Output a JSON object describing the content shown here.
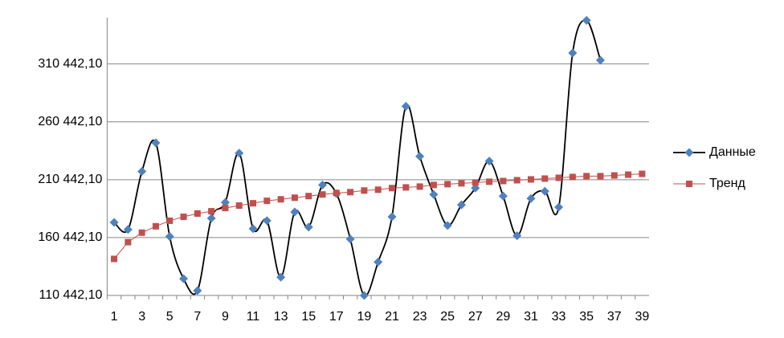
{
  "chart_data": {
    "type": "line",
    "categories": [
      "1",
      null,
      "3",
      null,
      "5",
      null,
      "7",
      null,
      "9",
      null,
      "11",
      null,
      "13",
      null,
      "15",
      null,
      "17",
      null,
      "19",
      null,
      "21",
      null,
      "23",
      null,
      "25",
      null,
      "27",
      null,
      "29",
      null,
      "31",
      null,
      "33",
      null,
      "35",
      null,
      "37",
      null,
      "39"
    ],
    "series": [
      {
        "name": "Данные",
        "color": "#000000",
        "marker_color": "#4f81bd",
        "marker": "diamond",
        "smooth": true,
        "values": [
          173600,
          167400,
          217600,
          242300,
          161300,
          124900,
          114600,
          177100,
          190800,
          233400,
          168100,
          175000,
          126200,
          182600,
          169500,
          205900,
          198400,
          159200,
          110400,
          139300,
          178400,
          273900,
          230600,
          197700,
          170900,
          188700,
          203200,
          226500,
          196300,
          162000,
          194200,
          200400,
          186700,
          319900,
          348100,
          313700,
          null,
          null,
          null
        ]
      },
      {
        "name": "Тренд",
        "color": "#c0504d",
        "marker_color": "#c0504d",
        "marker": "square",
        "smooth": false,
        "values": [
          142000,
          156500,
          164700,
          170200,
          175000,
          178400,
          181200,
          183200,
          186000,
          188100,
          190100,
          192200,
          193500,
          194900,
          196300,
          197700,
          199000,
          199700,
          201100,
          201800,
          203200,
          203800,
          204500,
          205900,
          206600,
          207300,
          208000,
          208700,
          209300,
          210000,
          210700,
          211400,
          212100,
          212800,
          213500,
          213500,
          214100,
          214800,
          215500
        ]
      }
    ],
    "ylim": [
      110442.1,
      350442.1
    ],
    "yticks": [
      {
        "value": 110442.1,
        "label": "110 442,10"
      },
      {
        "value": 160442.1,
        "label": "160 442,10"
      },
      {
        "value": 210442.1,
        "label": "210 442,10"
      },
      {
        "value": 260442.1,
        "label": "260 442,10"
      },
      {
        "value": 310442.1,
        "label": "310 442,10"
      }
    ],
    "grid": true,
    "legend": "right"
  }
}
